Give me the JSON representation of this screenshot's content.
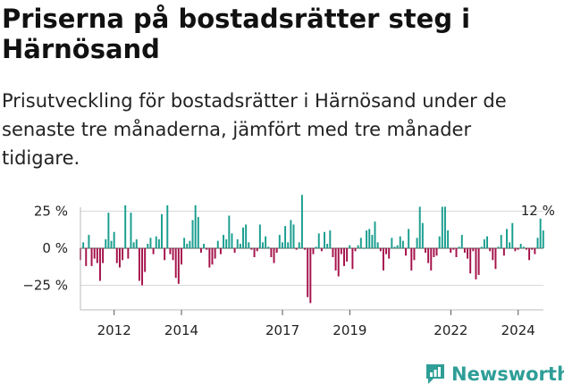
{
  "title": "Priserna på bostadsrätter steg i Härnösand",
  "subtitle": "Prisutveckling för bostadsrätter i Härnösand under de senaste tre månaderna, jämfört med tre månader tidigare.",
  "brand": "Newsworthy",
  "colors": {
    "positive": "#1a9e8f",
    "negative": "#a5124a",
    "brand": "#2e9e97"
  },
  "chart_data": {
    "type": "bar",
    "title": "Priserna på bostadsrätter steg i Härnösand",
    "xlabel": "",
    "ylabel": "",
    "y_unit": "%",
    "ylim": [
      -40,
      40
    ],
    "x_range": [
      2011.0,
      2024.75
    ],
    "grid": true,
    "y_ticks": [
      {
        "value": 25,
        "label": "25 %"
      },
      {
        "value": 0,
        "label": "0 %"
      },
      {
        "value": -25,
        "label": "−25 %"
      }
    ],
    "x_ticks": [
      {
        "value": 2012,
        "label": "2012"
      },
      {
        "value": 2014,
        "label": "2014"
      },
      {
        "value": 2017,
        "label": "2017"
      },
      {
        "value": 2019,
        "label": "2019"
      },
      {
        "value": 2022,
        "label": "2022"
      },
      {
        "value": 2024,
        "label": "2024"
      }
    ],
    "last_value_label": "12 %",
    "x_start": 2011.0,
    "x_step": 0.0833,
    "values": [
      -8,
      4,
      -12,
      9,
      -12,
      -7,
      -10,
      -22,
      -10,
      6,
      24,
      5,
      11,
      -10,
      -13,
      -8,
      29,
      -7,
      24,
      4,
      6,
      -22,
      -25,
      -16,
      3,
      7,
      -4,
      8,
      6,
      23,
      -8,
      29,
      -4,
      -8,
      -20,
      -24,
      -11,
      7,
      3,
      5,
      19,
      29,
      21,
      -3,
      3,
      -1,
      -13,
      -11,
      -7,
      5,
      -4,
      9,
      6,
      22,
      10,
      -3,
      6,
      3,
      14,
      16,
      4,
      -1,
      -6,
      -2,
      16,
      4,
      8,
      1,
      -6,
      -10,
      -3,
      9,
      4,
      15,
      4,
      19,
      16,
      -1,
      4,
      36,
      -1,
      -33,
      -37,
      -4,
      1,
      10,
      -2,
      11,
      3,
      12,
      -6,
      -15,
      -19,
      -4,
      -12,
      -9,
      2,
      -14,
      -2,
      2,
      7,
      0,
      12,
      13,
      9,
      18,
      4,
      -2,
      -15,
      -4,
      -7,
      7,
      1,
      2,
      8,
      5,
      -5,
      13,
      -15,
      -8,
      7,
      28,
      17,
      -3,
      -10,
      -15,
      -6,
      -5,
      8,
      28,
      28,
      12,
      -3,
      -1,
      -6,
      1,
      9,
      -3,
      -7,
      -17,
      -2,
      -21,
      -18,
      1,
      6,
      8,
      -2,
      -8,
      -14,
      1,
      9,
      -5,
      13,
      4,
      17,
      -2,
      -1,
      3,
      1,
      -1,
      -8,
      -1,
      -4,
      7,
      20,
      12
    ]
  }
}
